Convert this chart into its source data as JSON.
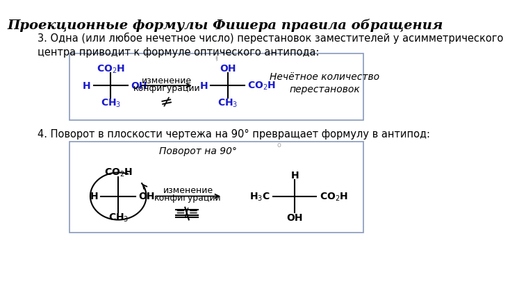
{
  "title": "Проекционные формулы Фишера правила обращения",
  "text1": "3. Одна (или любое нечетное число) перестановок заместителей у асимметрического\nцентра приводит к формуле оптического антипода:",
  "text2": "4. Поворот в плоскости чертежа на 90° превращает формулу в антипод:",
  "bg": "#ffffff",
  "blue": "#1a1acd",
  "black": "#000000",
  "gray_box": "#e8eef8",
  "box_edge": "#8899bb",
  "title_fontsize": 14,
  "body_fontsize": 10.5,
  "chem_fontsize": 10,
  "note_fontsize": 10
}
